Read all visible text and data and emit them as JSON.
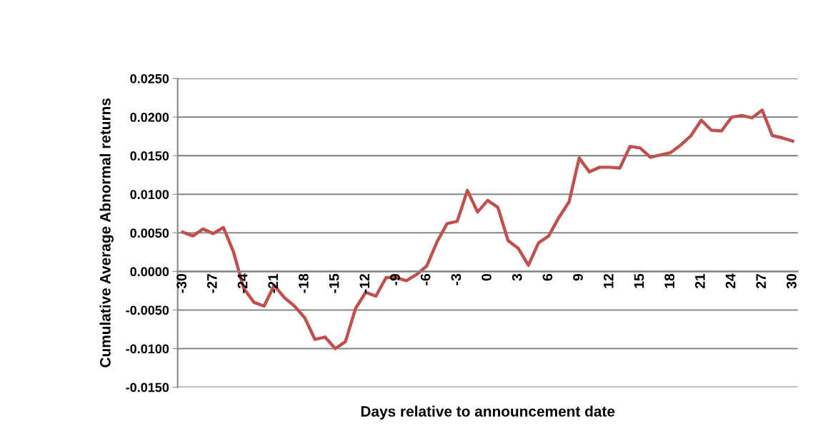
{
  "chart_data": {
    "type": "line",
    "xlabel": "Days relative to announcement date",
    "ylabel": "Cumulative Average Abnormal returns",
    "categories": [
      "-30",
      null,
      null,
      "-27",
      null,
      null,
      "-24",
      null,
      null,
      "-21",
      null,
      null,
      "-18",
      null,
      null,
      "-15",
      null,
      null,
      "-12",
      null,
      null,
      "-9",
      null,
      null,
      "-6",
      null,
      null,
      "-3",
      null,
      null,
      "0",
      null,
      null,
      "3",
      null,
      null,
      "6",
      null,
      null,
      "9",
      null,
      null,
      "12",
      null,
      null,
      "15",
      null,
      null,
      "18",
      null,
      null,
      "21",
      null,
      null,
      "24",
      null,
      null,
      "27",
      null,
      null,
      "30"
    ],
    "series": [
      {
        "color": "#c0504d",
        "values": [
          0.0051,
          0.0046,
          0.0055,
          0.0049,
          0.0057,
          0.0025,
          -0.0022,
          -0.004,
          -0.0045,
          -0.0018,
          -0.0034,
          -0.0045,
          -0.006,
          -0.0088,
          -0.0085,
          -0.01,
          -0.0091,
          -0.0048,
          -0.0027,
          -0.0032,
          -0.0008,
          -0.0008,
          -0.0012,
          -0.0004,
          0.0007,
          0.0038,
          0.0062,
          0.0065,
          0.0105,
          0.0077,
          0.0092,
          0.0083,
          0.004,
          0.003,
          0.0008,
          0.0037,
          0.0046,
          0.007,
          0.009,
          0.0147,
          0.0129,
          0.0135,
          0.0135,
          0.0134,
          0.0162,
          0.016,
          0.0148,
          0.0151,
          0.0154,
          0.0164,
          0.0176,
          0.0196,
          0.0183,
          0.0182,
          0.02,
          0.0202,
          0.0199,
          0.0209,
          0.0176,
          0.0173,
          0.0169
        ]
      }
    ],
    "ylim": [
      -0.015,
      0.025
    ],
    "yticks": [
      {
        "value": -0.015,
        "label": "-0.0150"
      },
      {
        "value": -0.01,
        "label": "-0.0100"
      },
      {
        "value": -0.005,
        "label": "-0.0050"
      },
      {
        "value": 0,
        "label": "0.0000"
      },
      {
        "value": 0.005,
        "label": "0.0050"
      },
      {
        "value": 0.01,
        "label": "0.0100"
      },
      {
        "value": 0.015,
        "label": "0.0150"
      },
      {
        "value": 0.02,
        "label": "0.0200"
      },
      {
        "value": 0.025,
        "label": "0.0250"
      }
    ],
    "grid": "y",
    "legend": false,
    "marker": "none",
    "line_style": "solid"
  }
}
